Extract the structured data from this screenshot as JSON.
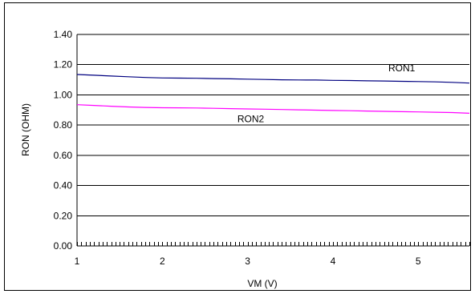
{
  "chart_data": {
    "type": "line",
    "title": "",
    "xlabel": "VM (V)",
    "ylabel": "RON (OHM)",
    "xlim": [
      1,
      5.6
    ],
    "ylim": [
      0,
      1.4
    ],
    "xticks": [
      {
        "value": 1,
        "label": "1"
      },
      {
        "value": 2,
        "label": "2"
      },
      {
        "value": 3,
        "label": "3"
      },
      {
        "value": 4,
        "label": "4"
      },
      {
        "value": 5,
        "label": "5"
      }
    ],
    "yticks": [
      {
        "value": 0.0,
        "label": "0.00"
      },
      {
        "value": 0.2,
        "label": "0.20"
      },
      {
        "value": 0.4,
        "label": "0.40"
      },
      {
        "value": 0.6,
        "label": "0.60"
      },
      {
        "value": 0.8,
        "label": "0.80"
      },
      {
        "value": 1.0,
        "label": "1.00"
      },
      {
        "value": 1.2,
        "label": "1.20"
      },
      {
        "value": 1.4,
        "label": "1.40"
      }
    ],
    "grid": "horizontal",
    "legend": "none",
    "series": [
      {
        "name": "RON1",
        "color": "#000080",
        "label_at": [
          4.65,
          1.155
        ],
        "x": [
          1.0,
          1.2,
          1.4,
          1.6,
          1.8,
          2.0,
          2.2,
          2.4,
          2.6,
          2.8,
          3.0,
          3.2,
          3.4,
          3.6,
          3.8,
          4.0,
          4.2,
          4.4,
          4.6,
          4.8,
          5.0,
          5.2,
          5.4,
          5.6
        ],
        "y": [
          1.135,
          1.13,
          1.125,
          1.12,
          1.115,
          1.112,
          1.111,
          1.11,
          1.108,
          1.106,
          1.104,
          1.102,
          1.1,
          1.099,
          1.098,
          1.096,
          1.095,
          1.093,
          1.092,
          1.09,
          1.088,
          1.086,
          1.083,
          1.078
        ]
      },
      {
        "name": "RON2",
        "color": "#ff00ff",
        "label_at": [
          2.88,
          0.82
        ],
        "x": [
          1.0,
          1.2,
          1.4,
          1.6,
          1.8,
          2.0,
          2.2,
          2.4,
          2.6,
          2.8,
          3.0,
          3.2,
          3.4,
          3.6,
          3.8,
          4.0,
          4.2,
          4.4,
          4.6,
          4.8,
          5.0,
          5.2,
          5.4,
          5.6
        ],
        "y": [
          0.935,
          0.93,
          0.925,
          0.92,
          0.917,
          0.915,
          0.914,
          0.913,
          0.911,
          0.909,
          0.907,
          0.905,
          0.903,
          0.901,
          0.899,
          0.897,
          0.895,
          0.893,
          0.891,
          0.889,
          0.887,
          0.885,
          0.883,
          0.878
        ]
      }
    ]
  }
}
